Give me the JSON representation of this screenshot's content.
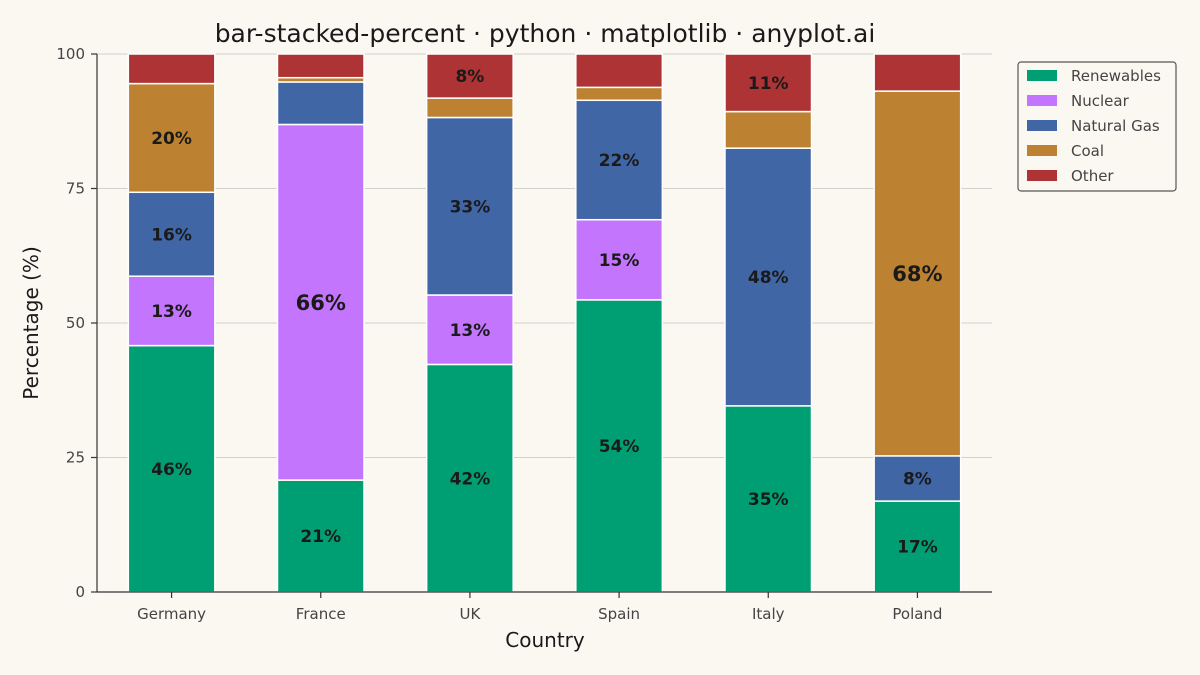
{
  "chart_data": {
    "type": "bar",
    "stacked": true,
    "title": "bar-stacked-percent · python · matplotlib · anyplot.ai",
    "xlabel": "Country",
    "ylabel": "Percentage (%)",
    "ylim": [
      0,
      100
    ],
    "yticks": [
      "0",
      "25",
      "50",
      "75",
      "100"
    ],
    "grid": "horizontal",
    "legend_position": "top-right",
    "categories": [
      "Germany",
      "France",
      "UK",
      "Spain",
      "Italy",
      "Poland"
    ],
    "series": [
      {
        "name": "Renewables",
        "color": "#009E73",
        "values": [
          45.8,
          20.8,
          42.3,
          54.3,
          34.6,
          16.9
        ],
        "labels": [
          "46%",
          "21%",
          "42%",
          "54%",
          "35%",
          "17%"
        ]
      },
      {
        "name": "Nuclear",
        "color": "#C475FD",
        "values": [
          12.9,
          66.1,
          12.9,
          14.9,
          0,
          0
        ],
        "labels": [
          "13%",
          "66%",
          "13%",
          "15%",
          "",
          ""
        ]
      },
      {
        "name": "Natural Gas",
        "color": "#4166A6",
        "values": [
          15.6,
          7.9,
          33.0,
          22.2,
          47.9,
          8.4
        ],
        "labels": [
          "16%",
          "",
          "33%",
          "22%",
          "48%",
          "8%"
        ]
      },
      {
        "name": "Coal",
        "color": "#BC8232",
        "values": [
          20.2,
          0.8,
          3.6,
          2.4,
          6.8,
          67.8
        ],
        "labels": [
          "20%",
          "",
          "",
          "",
          "",
          "68%"
        ]
      },
      {
        "name": "Other",
        "color": "#AE3334",
        "values": [
          5.5,
          4.4,
          8.2,
          6.2,
          10.7,
          6.9
        ],
        "labels": [
          "",
          "",
          "8%",
          "",
          "11%",
          ""
        ]
      }
    ]
  }
}
